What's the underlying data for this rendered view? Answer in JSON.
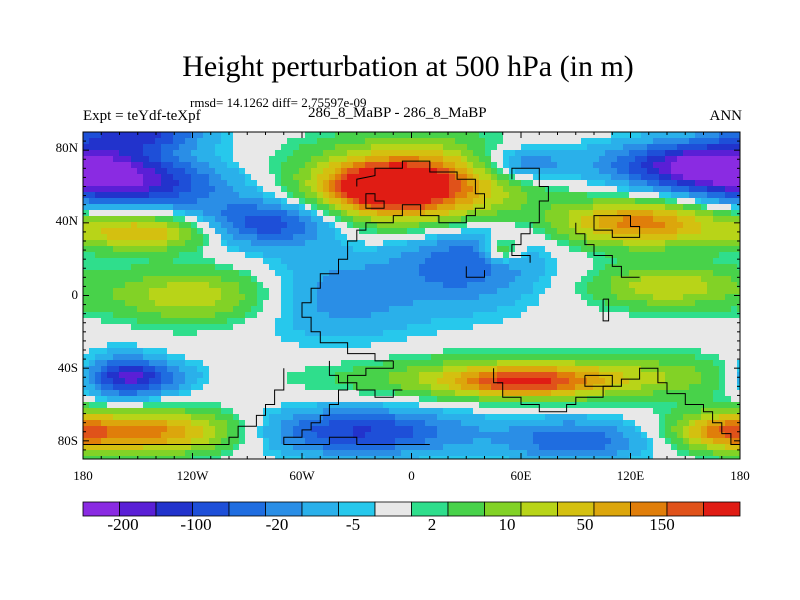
{
  "chart_data": {
    "type": "heatmap",
    "title": "Height perturbation at 500 hPa (in m)",
    "stats": "rmsd= 14.1262 diff= 2.75597e-09",
    "left_string": "Expt = teYdf-teXpf",
    "center_string": "286_8_MaBP - 286_8_MaBP",
    "right_string": "ANN",
    "x_ticks": [
      "180",
      "120W",
      "60W",
      "0",
      "60E",
      "120E",
      "180"
    ],
    "y_ticks": [
      "80N",
      "40N",
      "0",
      "40S",
      "80S"
    ],
    "xlim": [
      -180,
      180
    ],
    "ylim": [
      -90,
      90
    ],
    "colorbar": {
      "labels": [
        "-200",
        "-100",
        "-20",
        "-5",
        "2",
        "10",
        "50",
        "150"
      ],
      "colors": [
        "#8a2be2",
        "#5a1fd6",
        "#2233cc",
        "#1e4fd8",
        "#1f6de0",
        "#2a8ee6",
        "#2ab0ea",
        "#27c8ec",
        "#e8e8e8",
        "#2fde8c",
        "#48d24a",
        "#82d226",
        "#b8d418",
        "#d4c010",
        "#dca60c",
        "#e07e0a",
        "#e0521a",
        "#e01c14"
      ]
    },
    "field_blobs": [
      {
        "lon": 0,
        "lat": 60,
        "rx": 55,
        "ry": 22,
        "v": 7
      },
      {
        "lon": -15,
        "lat": 60,
        "rx": 25,
        "ry": 10,
        "v": 5
      },
      {
        "lon": 165,
        "lat": 72,
        "rx": 55,
        "ry": 13,
        "v": -6
      },
      {
        "lon": -155,
        "lat": 60,
        "rx": 55,
        "ry": 13,
        "v": -4
      },
      {
        "lon": -150,
        "lat": 90,
        "rx": 35,
        "ry": 10,
        "v": -4
      },
      {
        "lon": 60,
        "lat": 72,
        "rx": 25,
        "ry": 10,
        "v": -3
      },
      {
        "lon": 125,
        "lat": 40,
        "rx": 45,
        "ry": 13,
        "v": 5
      },
      {
        "lon": -145,
        "lat": 35,
        "rx": 40,
        "ry": 10,
        "v": 4
      },
      {
        "lon": -80,
        "lat": 40,
        "rx": 40,
        "ry": 13,
        "v": -4
      },
      {
        "lon": 30,
        "lat": 20,
        "rx": 40,
        "ry": 25,
        "v": -3
      },
      {
        "lon": 50,
        "lat": 25,
        "rx": 10,
        "ry": 7,
        "v": 3
      },
      {
        "lon": -120,
        "lat": 0,
        "rx": 45,
        "ry": 15,
        "v": 3
      },
      {
        "lon": 140,
        "lat": 5,
        "rx": 40,
        "ry": 12,
        "v": 3
      },
      {
        "lon": -40,
        "lat": 0,
        "rx": 45,
        "ry": 25,
        "v": -2
      },
      {
        "lon": -150,
        "lat": -45,
        "rx": 30,
        "ry": 10,
        "v": -4
      },
      {
        "lon": -160,
        "lat": -45,
        "rx": 20,
        "ry": 15,
        "v": -2
      },
      {
        "lon": -145,
        "lat": -75,
        "rx": 55,
        "ry": 12,
        "v": 5
      },
      {
        "lon": 80,
        "lat": -45,
        "rx": 110,
        "ry": 12,
        "v": 3
      },
      {
        "lon": 60,
        "lat": -48,
        "rx": 40,
        "ry": 8,
        "v": 4
      },
      {
        "lon": -30,
        "lat": -75,
        "rx": 60,
        "ry": 13,
        "v": -4
      },
      {
        "lon": 90,
        "lat": -80,
        "rx": 40,
        "ry": 12,
        "v": -3
      },
      {
        "lon": 170,
        "lat": -75,
        "rx": 25,
        "ry": 10,
        "v": 3
      }
    ]
  }
}
